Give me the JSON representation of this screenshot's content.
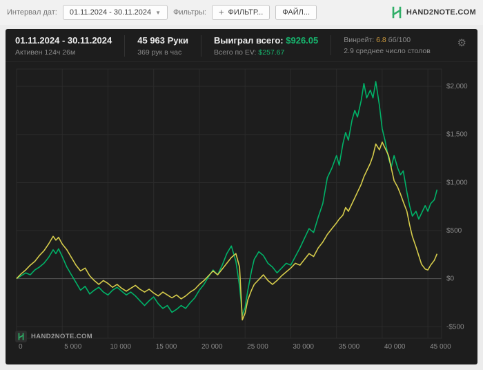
{
  "brand": {
    "name": "HAND2NOTE.COM",
    "color": "#2fae67"
  },
  "toolbar": {
    "interval_label": "Интервал дат:",
    "date_range": "01.11.2024 - 30.11.2024",
    "filters_label": "Фильтры:",
    "filter_button": "ФИЛЬТР...",
    "file_button": "ФАЙЛ..."
  },
  "stats": {
    "date_range": "01.11.2024 - 30.11.2024",
    "active_time": "Активен 124ч 26м",
    "hands": "45 963 Руки",
    "hands_per_hour": "369 рук в час",
    "won_label": "Выиграл всего:",
    "won_value": "$926.05",
    "ev_label": "Всего по EV:",
    "ev_value": "$257.67",
    "winrate_label": "Винрейт:",
    "winrate_value": "6.8",
    "winrate_units": "бб/100",
    "tables_avg": "2.9 среднее число столов"
  },
  "watermark": {
    "text": "HAND2NOTE.COM"
  },
  "colors": {
    "won_line": "#00b268",
    "ev_line": "#d6cc4b",
    "positive_value": "#17b56e",
    "winrate_value": "#cf9b3d",
    "panel_bg": "#1d1d1d",
    "grid": "#2b2b2b",
    "zero_line": "#555555",
    "tick_text": "#8a8a8a"
  },
  "chart_data": {
    "type": "line",
    "title": "",
    "xlabel": "",
    "ylabel": "",
    "legend": "none",
    "grid": true,
    "xlim": [
      0,
      46500
    ],
    "ylim": [
      -620,
      2180
    ],
    "x_tick_labels": [
      "0",
      "5 000",
      "10 000",
      "15 000",
      "20 000",
      "25 000",
      "30 000",
      "35 000",
      "40 000",
      "45 000"
    ],
    "x_tick_values": [
      0,
      5000,
      10000,
      15000,
      20000,
      25000,
      30000,
      35000,
      40000,
      45000
    ],
    "y_tick_labels": [
      "-$500",
      "$0",
      "$500",
      "$1,000",
      "$1,500",
      "$2,000"
    ],
    "y_tick_values": [
      -500,
      0,
      500,
      1000,
      1500,
      2000
    ],
    "x": [
      0,
      500,
      1000,
      1500,
      2000,
      2500,
      3000,
      3500,
      4000,
      4300,
      4600,
      5000,
      5500,
      6000,
      6500,
      7000,
      7500,
      8000,
      8500,
      9000,
      9500,
      10000,
      10500,
      11000,
      11500,
      12000,
      12500,
      13000,
      13500,
      14000,
      14500,
      15000,
      15500,
      16000,
      16500,
      17000,
      17500,
      18000,
      18500,
      19000,
      19500,
      20000,
      20500,
      21000,
      21500,
      22000,
      22500,
      23000,
      23500,
      24000,
      24400,
      24700,
      25000,
      25300,
      25700,
      26000,
      26500,
      27000,
      27500,
      28000,
      28500,
      29000,
      29500,
      30000,
      30500,
      31000,
      31500,
      32000,
      32500,
      33000,
      33500,
      34000,
      34500,
      35000,
      35300,
      35700,
      36000,
      36300,
      36700,
      37000,
      37300,
      37700,
      38000,
      38300,
      38700,
      39000,
      39300,
      39700,
      40000,
      40300,
      40700,
      41000,
      41300,
      41700,
      42000,
      42300,
      42700,
      43000,
      43300,
      43700,
      44000,
      44300,
      44700,
      45000,
      45300,
      45700,
      46000
    ],
    "series": [
      {
        "name": "Выиграл всего",
        "color": "#00b268",
        "values": [
          0,
          30,
          60,
          40,
          90,
          120,
          160,
          220,
          300,
          260,
          310,
          230,
          120,
          40,
          -40,
          -120,
          -80,
          -160,
          -120,
          -90,
          -140,
          -170,
          -120,
          -90,
          -130,
          -170,
          -140,
          -180,
          -230,
          -280,
          -230,
          -190,
          -260,
          -310,
          -280,
          -350,
          -320,
          -280,
          -310,
          -250,
          -200,
          -120,
          -60,
          20,
          90,
          40,
          140,
          260,
          340,
          180,
          -80,
          -380,
          -300,
          -120,
          80,
          200,
          280,
          240,
          160,
          120,
          60,
          110,
          160,
          140,
          230,
          320,
          420,
          520,
          480,
          640,
          780,
          1050,
          1150,
          1280,
          1180,
          1400,
          1520,
          1440,
          1650,
          1750,
          1680,
          1850,
          2030,
          1880,
          1960,
          1880,
          2050,
          1800,
          1560,
          1440,
          1250,
          1160,
          1280,
          1150,
          1080,
          1120,
          900,
          760,
          650,
          700,
          620,
          680,
          760,
          700,
          780,
          820,
          926
        ]
      },
      {
        "name": "Всего по EV",
        "color": "#d6cc4b",
        "values": [
          0,
          50,
          90,
          140,
          180,
          240,
          290,
          360,
          440,
          400,
          430,
          360,
          300,
          220,
          140,
          80,
          110,
          30,
          -20,
          -60,
          -20,
          -50,
          -90,
          -60,
          -100,
          -130,
          -100,
          -70,
          -110,
          -140,
          -110,
          -150,
          -180,
          -140,
          -170,
          -200,
          -170,
          -210,
          -180,
          -140,
          -110,
          -60,
          -20,
          30,
          80,
          40,
          100,
          160,
          220,
          260,
          120,
          -430,
          -360,
          -220,
          -120,
          -60,
          -10,
          40,
          -20,
          -60,
          -20,
          30,
          70,
          110,
          160,
          140,
          200,
          260,
          230,
          320,
          380,
          460,
          520,
          580,
          620,
          660,
          740,
          700,
          780,
          840,
          900,
          980,
          1060,
          1120,
          1200,
          1280,
          1400,
          1340,
          1420,
          1360,
          1280,
          1150,
          1020,
          950,
          880,
          800,
          700,
          560,
          440,
          330,
          240,
          150,
          100,
          90,
          140,
          190,
          258
        ]
      }
    ]
  }
}
